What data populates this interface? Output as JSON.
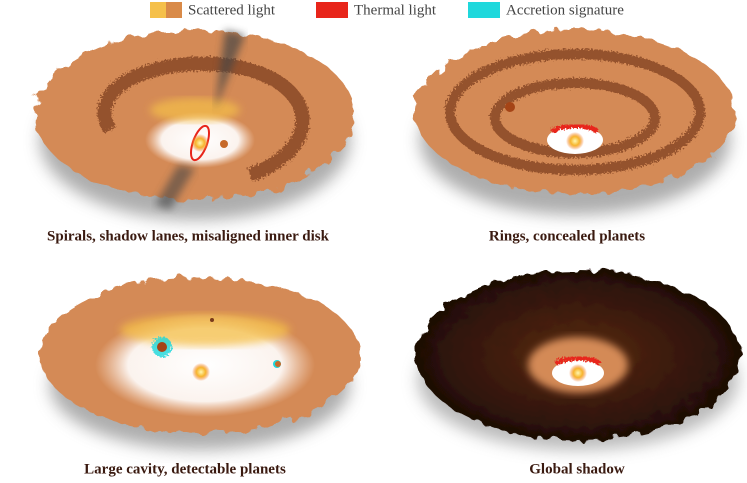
{
  "legend": {
    "items": [
      {
        "label": "Scattered light"
      },
      {
        "label": "Thermal light"
      },
      {
        "label": "Accretion signature"
      }
    ]
  },
  "panels": [
    {
      "caption": "Spirals, shadow lanes, misaligned inner disk"
    },
    {
      "caption": "Rings, concealed planets"
    },
    {
      "caption": "Large cavity, detectable planets"
    },
    {
      "caption": "Global shadow"
    }
  ]
}
